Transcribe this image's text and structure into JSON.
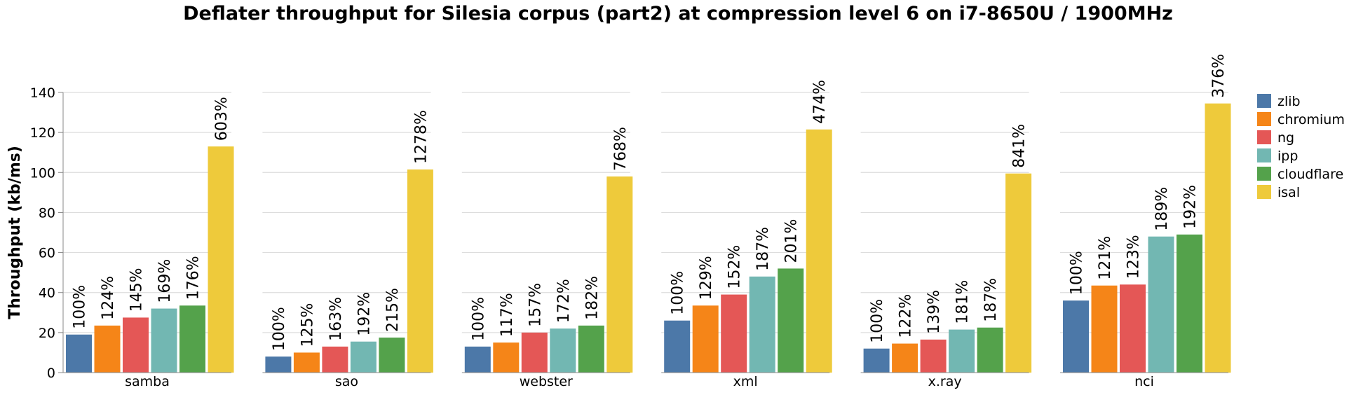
{
  "chart_data": {
    "type": "bar",
    "title": "Deflater throughput for Silesia corpus (part2) at compression level 6 on i7-8650U / 1900MHz",
    "ylabel": "Throughput (kb/ms)",
    "xlabel": "",
    "ylim": [
      0,
      140
    ],
    "yticks": [
      "0",
      "20",
      "40",
      "60",
      "80",
      "100",
      "120",
      "140"
    ],
    "grid": true,
    "legend_position": "right",
    "categories": [
      "samba",
      "sao",
      "webster",
      "xml",
      "x.ray",
      "nci"
    ],
    "series": [
      {
        "name": "zlib",
        "color": "#4c78a8",
        "values": [
          19,
          8,
          13,
          26,
          12,
          36
        ],
        "labels": [
          "100%",
          "100%",
          "100%",
          "100%",
          "100%",
          "100%"
        ]
      },
      {
        "name": "chromium",
        "color": "#f58518",
        "values": [
          23.5,
          10,
          15,
          33.5,
          14.5,
          43.5
        ],
        "labels": [
          "124%",
          "125%",
          "117%",
          "129%",
          "122%",
          "121%"
        ]
      },
      {
        "name": "ng",
        "color": "#e45756",
        "values": [
          27.5,
          13,
          20,
          39,
          16.5,
          44
        ],
        "labels": [
          "145%",
          "163%",
          "157%",
          "152%",
          "139%",
          "123%"
        ]
      },
      {
        "name": "ipp",
        "color": "#72b7b2",
        "values": [
          32,
          15.5,
          22,
          48,
          21.5,
          68
        ],
        "labels": [
          "169%",
          "192%",
          "172%",
          "187%",
          "181%",
          "189%"
        ]
      },
      {
        "name": "cloudflare",
        "color": "#54a24b",
        "values": [
          33.5,
          17.5,
          23.5,
          52,
          22.5,
          69
        ],
        "labels": [
          "176%",
          "215%",
          "182%",
          "201%",
          "187%",
          "192%"
        ]
      },
      {
        "name": "isal",
        "color": "#eeca3b",
        "values": [
          113,
          101.5,
          98,
          121.5,
          99.5,
          134.5
        ],
        "labels": [
          "603%",
          "1278%",
          "768%",
          "474%",
          "841%",
          "376%"
        ]
      }
    ]
  }
}
